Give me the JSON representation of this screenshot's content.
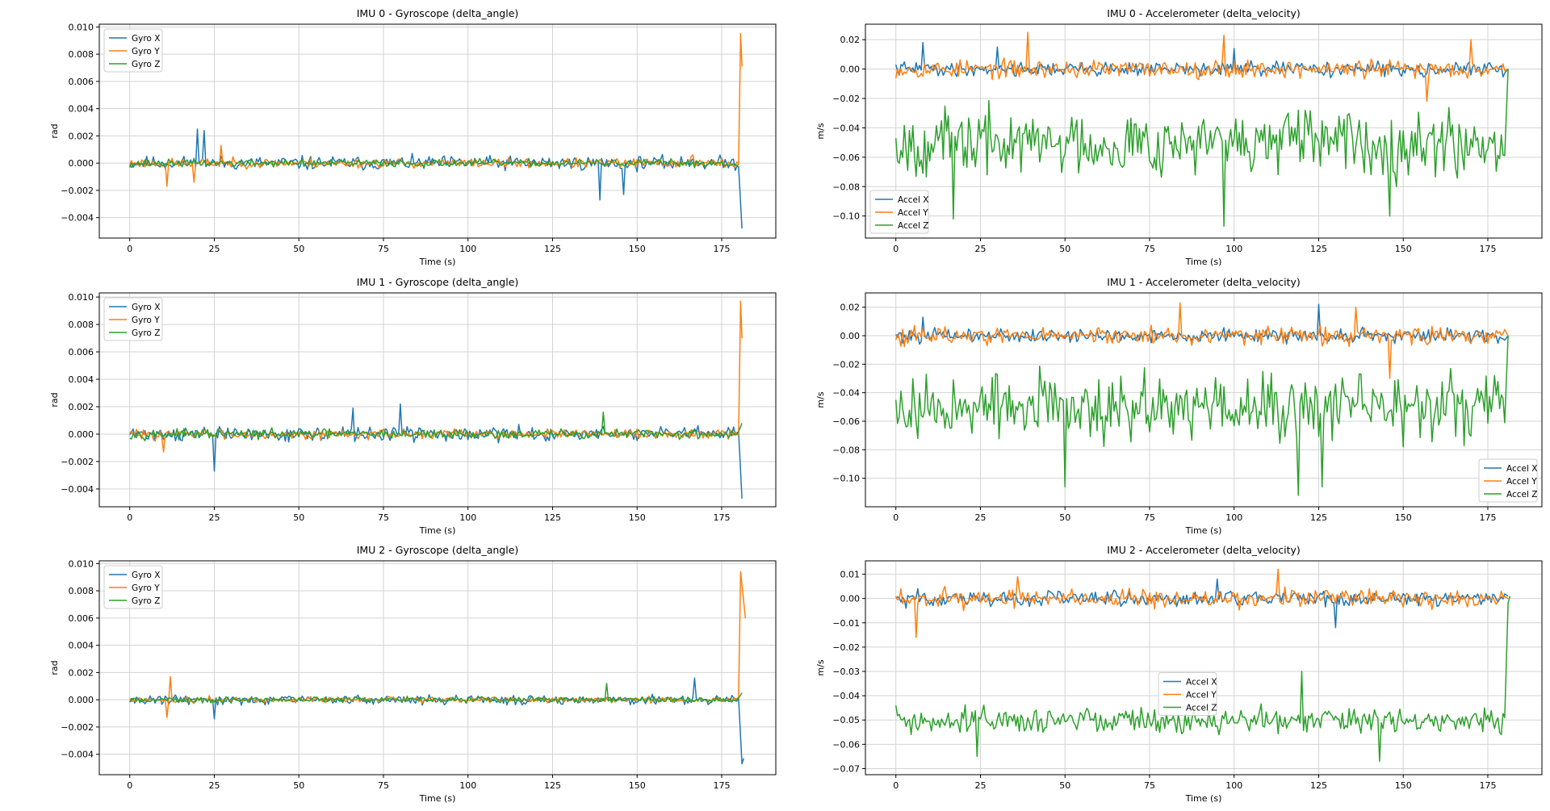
{
  "colors": {
    "x": "#1f77b4",
    "y": "#ff7f0e",
    "z": "#2ca02c",
    "grid": "#d3d3d3"
  },
  "chart_data": [
    {
      "id": "imu0_gyro",
      "type": "line",
      "title": "IMU 0 - Gyroscope (delta_angle)",
      "xlabel": "Time (s)",
      "ylabel": "rad",
      "xlim": [
        -9,
        191
      ],
      "ylim": [
        -0.0055,
        0.0102
      ],
      "xticks": [
        0,
        25,
        50,
        75,
        100,
        125,
        150,
        175
      ],
      "yticks": [
        -0.004,
        -0.002,
        0.0,
        0.002,
        0.004,
        0.006,
        0.008,
        0.01
      ],
      "ytick_labels": [
        "−0.004",
        "−0.002",
        "0.000",
        "0.002",
        "0.004",
        "0.006",
        "0.008",
        "0.010"
      ],
      "grid": true,
      "legend_position": "upper-left",
      "series": [
        {
          "name": "Gyro X",
          "color_key": "x",
          "amp": 0.00075,
          "seed": 11,
          "points": [
            [
              165.8,
              0.0002
            ],
            [
              166.5,
              0.0003
            ],
            [
              181,
              -0.0048
            ]
          ],
          "spikes": [
            [
              20,
              0.0025
            ],
            [
              22,
              0.0024
            ],
            [
              139,
              -0.0027
            ],
            [
              146,
              -0.0023
            ]
          ]
        },
        {
          "name": "Gyro Y",
          "color_key": "y",
          "amp": 0.0005,
          "seed": 23,
          "points": [
            [
              165.8,
              0.0005
            ],
            [
              166.5,
              0.0006
            ],
            [
              180.6,
              0.0095
            ],
            [
              181,
              0.0071
            ]
          ],
          "spikes": [
            [
              11,
              -0.0017
            ],
            [
              19,
              -0.0014
            ],
            [
              27,
              0.0013
            ]
          ]
        },
        {
          "name": "Gyro Z",
          "color_key": "z",
          "amp": 0.0004,
          "seed": 37,
          "points": [
            [
              166.5,
              0.0001
            ]
          ],
          "spikes": []
        }
      ]
    },
    {
      "id": "imu0_accel",
      "type": "line",
      "title": "IMU 0 - Accelerometer (delta_velocity)",
      "xlabel": "Time (s)",
      "ylabel": "m/s",
      "xlim": [
        -9,
        191
      ],
      "ylim": [
        -0.115,
        0.0305
      ],
      "xticks": [
        0,
        25,
        50,
        75,
        100,
        125,
        150,
        175
      ],
      "yticks": [
        -0.1,
        -0.08,
        -0.06,
        -0.04,
        -0.02,
        0.0,
        0.02
      ],
      "ytick_labels": [
        "−0.10",
        "−0.08",
        "−0.06",
        "−0.04",
        "−0.02",
        "0.00",
        "0.02"
      ],
      "grid": true,
      "legend_position": "lower-left",
      "series": [
        {
          "name": "Accel X",
          "color_key": "x",
          "amp": 0.007,
          "seed": 41,
          "points": [
            [
              181,
              0.0
            ]
          ],
          "spikes": [
            [
              8,
              0.018
            ],
            [
              30,
              0.015
            ],
            [
              100,
              0.014
            ]
          ]
        },
        {
          "name": "Accel Y",
          "color_key": "y",
          "amp": 0.009,
          "seed": 53,
          "points": [
            [
              181,
              0.0
            ]
          ],
          "spikes": [
            [
              39,
              0.025
            ],
            [
              97,
              0.023
            ],
            [
              170,
              0.02
            ],
            [
              157,
              -0.022
            ]
          ]
        },
        {
          "name": "Accel Z",
          "color_key": "z",
          "base": -0.05,
          "amp": 0.032,
          "seed": 67,
          "points": [
            [
              0,
              -0.047
            ],
            [
              181,
              0.0
            ]
          ],
          "spikes": [
            [
              17,
              -0.102
            ],
            [
              97,
              -0.107
            ],
            [
              146,
              -0.1
            ]
          ]
        }
      ]
    },
    {
      "id": "imu1_gyro",
      "type": "line",
      "title": "IMU 1 - Gyroscope (delta_angle)",
      "xlabel": "Time (s)",
      "ylabel": "rad",
      "xlim": [
        -9,
        191
      ],
      "ylim": [
        -0.0053,
        0.0103
      ],
      "xticks": [
        0,
        25,
        50,
        75,
        100,
        125,
        150,
        175
      ],
      "yticks": [
        -0.004,
        -0.002,
        0.0,
        0.002,
        0.004,
        0.006,
        0.008,
        0.01
      ],
      "ytick_labels": [
        "−0.004",
        "−0.002",
        "0.000",
        "0.002",
        "0.004",
        "0.006",
        "0.008",
        "0.010"
      ],
      "grid": true,
      "legend_position": "upper-left",
      "series": [
        {
          "name": "Gyro X",
          "color_key": "x",
          "amp": 0.00075,
          "seed": 71,
          "points": [
            [
              181,
              -0.0047
            ]
          ],
          "spikes": [
            [
              25,
              -0.0027
            ],
            [
              80,
              0.0022
            ],
            [
              66,
              0.0019
            ]
          ]
        },
        {
          "name": "Gyro Y",
          "color_key": "y",
          "amp": 0.0005,
          "seed": 83,
          "points": [
            [
              180.6,
              0.0097
            ],
            [
              181,
              0.007
            ]
          ],
          "spikes": [
            [
              10,
              -0.0013
            ]
          ]
        },
        {
          "name": "Gyro Z",
          "color_key": "z",
          "amp": 0.0005,
          "seed": 97,
          "points": [
            [
              181,
              0.0008
            ]
          ],
          "spikes": [
            [
              140,
              0.0016
            ]
          ]
        }
      ]
    },
    {
      "id": "imu1_accel",
      "type": "line",
      "title": "IMU 1 - Accelerometer (delta_velocity)",
      "xlabel": "Time (s)",
      "ylabel": "m/s",
      "xlim": [
        -9,
        191
      ],
      "ylim": [
        -0.12,
        0.03
      ],
      "xticks": [
        0,
        25,
        50,
        75,
        100,
        125,
        150,
        175
      ],
      "yticks": [
        -0.1,
        -0.08,
        -0.06,
        -0.04,
        -0.02,
        0.0,
        0.02
      ],
      "ytick_labels": [
        "−0.10",
        "−0.08",
        "−0.06",
        "−0.04",
        "−0.02",
        "0.00",
        "0.02"
      ],
      "grid": true,
      "legend_position": "lower-right",
      "series": [
        {
          "name": "Accel X",
          "color_key": "x",
          "amp": 0.007,
          "seed": 101,
          "points": [
            [
              181,
              0.0
            ]
          ],
          "spikes": [
            [
              125,
              0.022
            ],
            [
              8,
              0.013
            ]
          ]
        },
        {
          "name": "Accel Y",
          "color_key": "y",
          "amp": 0.009,
          "seed": 113,
          "points": [
            [
              181,
              0.0
            ]
          ],
          "spikes": [
            [
              84,
              0.023
            ],
            [
              136,
              0.02
            ],
            [
              146,
              -0.03
            ]
          ]
        },
        {
          "name": "Accel Z",
          "color_key": "z",
          "base": -0.05,
          "amp": 0.033,
          "seed": 127,
          "points": [
            [
              0,
              -0.045
            ],
            [
              181,
              0.0
            ]
          ],
          "spikes": [
            [
              50,
              -0.106
            ],
            [
              119,
              -0.112
            ],
            [
              126,
              -0.106
            ]
          ]
        }
      ]
    },
    {
      "id": "imu2_gyro",
      "type": "line",
      "title": "IMU 2 - Gyroscope (delta_angle)",
      "xlabel": "Time (s)",
      "ylabel": "rad",
      "xlim": [
        -9,
        191
      ],
      "ylim": [
        -0.0055,
        0.0102
      ],
      "xticks": [
        0,
        25,
        50,
        75,
        100,
        125,
        150,
        175
      ],
      "yticks": [
        -0.004,
        -0.002,
        0.0,
        0.002,
        0.004,
        0.006,
        0.008,
        0.01
      ],
      "ytick_labels": [
        "−0.004",
        "−0.002",
        "0.000",
        "0.002",
        "0.004",
        "0.006",
        "0.008",
        "0.010"
      ],
      "grid": true,
      "legend_position": "upper-left",
      "series": [
        {
          "name": "Gyro X",
          "color_key": "x",
          "amp": 0.0005,
          "seed": 131,
          "points": [
            [
              181,
              -0.0047
            ],
            [
              181.5,
              -0.0043
            ]
          ],
          "spikes": [
            [
              25,
              -0.0014
            ],
            [
              167,
              0.0016
            ]
          ]
        },
        {
          "name": "Gyro Y",
          "color_key": "y",
          "amp": 0.0003,
          "seed": 149,
          "points": [
            [
              180.6,
              0.0094
            ],
            [
              182,
              0.006
            ]
          ],
          "spikes": [
            [
              12,
              0.0017
            ],
            [
              11,
              -0.0013
            ]
          ]
        },
        {
          "name": "Gyro Z",
          "color_key": "z",
          "amp": 0.0003,
          "seed": 163,
          "points": [
            [
              181,
              0.0005
            ]
          ],
          "spikes": [
            [
              141,
              0.0012
            ]
          ]
        }
      ]
    },
    {
      "id": "imu2_accel",
      "type": "line",
      "title": "IMU 2 - Accelerometer (delta_velocity)",
      "xlabel": "Time (s)",
      "ylabel": "m/s",
      "xlim": [
        -9,
        191
      ],
      "ylim": [
        -0.0725,
        0.0155
      ],
      "xticks": [
        0,
        25,
        50,
        75,
        100,
        125,
        150,
        175
      ],
      "yticks": [
        -0.07,
        -0.06,
        -0.05,
        -0.04,
        -0.03,
        -0.02,
        -0.01,
        0.0,
        0.01
      ],
      "ytick_labels": [
        "−0.07",
        "−0.06",
        "−0.05",
        "−0.04",
        "−0.03",
        "−0.02",
        "−0.01",
        "0.00",
        "0.01"
      ],
      "grid": true,
      "legend_position": "center",
      "series": [
        {
          "name": "Accel X",
          "color_key": "x",
          "amp": 0.0045,
          "seed": 173,
          "points": [
            [
              181,
              0.001
            ]
          ],
          "spikes": [
            [
              95,
              0.008
            ],
            [
              130,
              -0.012
            ]
          ]
        },
        {
          "name": "Accel Y",
          "color_key": "y",
          "amp": 0.0055,
          "seed": 181,
          "points": [
            [
              181,
              0.0
            ]
          ],
          "spikes": [
            [
              113,
              0.012
            ],
            [
              36,
              0.009
            ],
            [
              6,
              -0.016
            ]
          ]
        },
        {
          "name": "Accel Z",
          "color_key": "z",
          "base": -0.05,
          "amp": 0.0075,
          "seed": 191,
          "points": [
            [
              0,
              -0.044
            ],
            [
              179,
              -0.056
            ],
            [
              181,
              -0.002
            ],
            [
              181.5,
              0.001
            ]
          ],
          "spikes": [
            [
              24,
              -0.065
            ],
            [
              143,
              -0.067
            ],
            [
              120,
              -0.03
            ]
          ]
        }
      ]
    }
  ]
}
